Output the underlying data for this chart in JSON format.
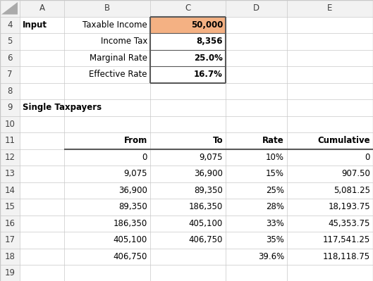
{
  "col_labels": [
    "A",
    "B",
    "C",
    "D",
    "E"
  ],
  "row_numbers": [
    "4",
    "5",
    "6",
    "7",
    "8",
    "9",
    "10",
    "11",
    "12",
    "13",
    "14",
    "15",
    "16",
    "17",
    "18",
    "19"
  ],
  "input_section": {
    "title": "Input",
    "rows": [
      {
        "row_idx": 1,
        "label": "Taxable Income",
        "value": "50,000",
        "value_bg": "#F4B183",
        "bold_val": true
      },
      {
        "row_idx": 2,
        "label": "Income Tax",
        "value": "8,356",
        "value_bg": "#FFFFFF",
        "bold_val": true
      },
      {
        "row_idx": 3,
        "label": "Marginal Rate",
        "value": "25.0%",
        "value_bg": "#FFFFFF",
        "bold_val": true
      },
      {
        "row_idx": 4,
        "label": "Effective Rate",
        "value": "16.7%",
        "value_bg": "#FFFFFF",
        "bold_val": true
      }
    ]
  },
  "tax_section": {
    "title": "Single Taxpayers",
    "title_row_idx": 6,
    "header_row_idx": 8,
    "headers": [
      "From",
      "To",
      "Rate",
      "Cumulative"
    ],
    "data_rows": [
      {
        "row_idx": 9,
        "from": "0",
        "to": "9,075",
        "rate": "10%",
        "cumulative": "0"
      },
      {
        "row_idx": 10,
        "from": "9,075",
        "to": "36,900",
        "rate": "15%",
        "cumulative": "907.50"
      },
      {
        "row_idx": 11,
        "from": "36,900",
        "to": "89,350",
        "rate": "25%",
        "cumulative": "5,081.25"
      },
      {
        "row_idx": 12,
        "from": "89,350",
        "to": "186,350",
        "rate": "28%",
        "cumulative": "18,193.75"
      },
      {
        "row_idx": 13,
        "from": "186,350",
        "to": "405,100",
        "rate": "33%",
        "cumulative": "45,353.75"
      },
      {
        "row_idx": 14,
        "from": "405,100",
        "to": "406,750",
        "rate": "35%",
        "cumulative": "117,541.25"
      },
      {
        "row_idx": 15,
        "from": "406,750",
        "to": "",
        "rate": "39.6%",
        "cumulative": "118,118.75"
      }
    ]
  },
  "bg_color": "#FFFFFF",
  "grid_color": "#C8C8C8",
  "row_header_bg": "#F2F2F2",
  "col_header_bg": "#F2F2F2",
  "font_size": 8.5,
  "bold_border_color": "#595959",
  "input_border_color": "#595959"
}
